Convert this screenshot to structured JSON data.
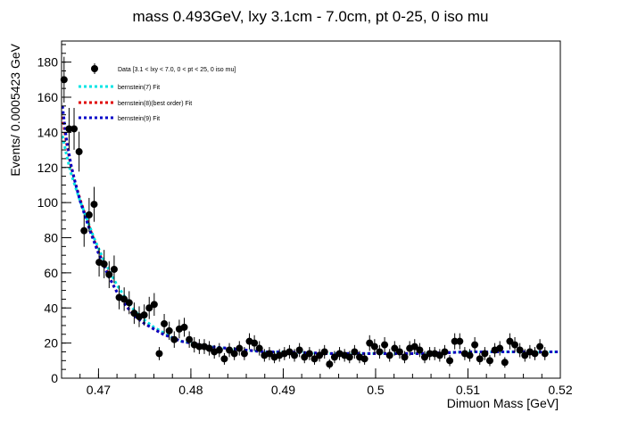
{
  "chart_data": {
    "type": "scatter",
    "title": "mass 0.493GeV, lxy 3.1cm - 7.0cm, pt 0-25, 0 iso mu",
    "xlabel": "Dimuon Mass [GeV]",
    "ylabel": "Events/ 0.0005423 GeV",
    "xlim": [
      0.466,
      0.52
    ],
    "ylim": [
      0,
      192
    ],
    "x_ticks": [
      0.47,
      0.48,
      0.49,
      0.5,
      0.51,
      0.52
    ],
    "x_tick_labels": [
      "0.47",
      "0.48",
      "0.49",
      "0.5",
      "0.51",
      "0.52"
    ],
    "y_ticks": [
      0,
      20,
      40,
      60,
      80,
      100,
      120,
      140,
      160,
      180
    ],
    "y_tick_labels": [
      "0",
      "20",
      "40",
      "60",
      "80",
      "100",
      "120",
      "140",
      "160",
      "180"
    ],
    "grid": false,
    "legend_position": "top-left",
    "legend": [
      {
        "label": "Data [3.1 < lxy < 7.0, 0 < pt < 25, 0 iso mu]",
        "color": "#000000",
        "style": "marker"
      },
      {
        "label": "bernstein(7) Fit",
        "color": "#00e5e5",
        "style": "dotted"
      },
      {
        "label": "bernstein(8)(best order) Fit",
        "color": "#e00000",
        "style": "dotted"
      },
      {
        "label": "bernstein(9) Fit",
        "color": "#0000c8",
        "style": "dotted"
      }
    ],
    "data_series": {
      "name": "Data [3.1 < lxy < 7.0, 0 < pt < 25, 0 iso mu]",
      "x_start": 0.46627,
      "bin_width": 0.0005423,
      "y": [
        170,
        142,
        142,
        129,
        84,
        93,
        99,
        66,
        65,
        59,
        62,
        46,
        45,
        43,
        37,
        35,
        36,
        40,
        42,
        14,
        31,
        27,
        22,
        28,
        29,
        22,
        19,
        18,
        18,
        17,
        15,
        16,
        11,
        16,
        14,
        17,
        14,
        21,
        20,
        17,
        13,
        14,
        12,
        13,
        14,
        15,
        13,
        16,
        12,
        14,
        11,
        13,
        15,
        8,
        12,
        14,
        13,
        12,
        15,
        12,
        11,
        20,
        18,
        15,
        19,
        13,
        17,
        15,
        12,
        17,
        18,
        16,
        12,
        14,
        14,
        13,
        15,
        10,
        21,
        21,
        14,
        13,
        19,
        11,
        14,
        10,
        16,
        17,
        9,
        21,
        19,
        16,
        13,
        15,
        14,
        18,
        14
      ]
    },
    "fits": [
      {
        "name": "bernstein(7) Fit",
        "color": "#00e5e5",
        "x": [
          0.4661,
          0.4665,
          0.467,
          0.4675,
          0.468,
          0.4685,
          0.469,
          0.4695,
          0.47,
          0.4705,
          0.471,
          0.4715,
          0.472,
          0.4725,
          0.473,
          0.4735,
          0.474,
          0.4745,
          0.475,
          0.476,
          0.477,
          0.478,
          0.479,
          0.48,
          0.482,
          0.484,
          0.486,
          0.488,
          0.49,
          0.495,
          0.5,
          0.505,
          0.51,
          0.515,
          0.52
        ],
        "y": [
          138,
          128,
          117,
          109,
          101,
          94,
          87,
          80,
          74,
          68,
          63,
          58,
          53,
          49,
          45,
          41,
          38,
          35,
          33,
          29,
          26,
          23,
          21,
          20,
          18,
          17,
          16,
          15,
          15,
          14,
          14,
          14,
          15,
          15,
          15
        ]
      },
      {
        "name": "bernstein(8)(best order) Fit",
        "color": "#e00000",
        "x": [
          0.4661,
          0.4665,
          0.467,
          0.4675,
          0.468,
          0.4685,
          0.469,
          0.4695,
          0.47,
          0.4705,
          0.471,
          0.4715,
          0.472,
          0.4725,
          0.473,
          0.4735,
          0.474,
          0.4745,
          0.475,
          0.476,
          0.477,
          0.478,
          0.479,
          0.48,
          0.482,
          0.484,
          0.486,
          0.488,
          0.49,
          0.495,
          0.5,
          0.505,
          0.51,
          0.515,
          0.52
        ],
        "y": [
          149,
          135,
          121,
          111,
          102,
          94,
          86,
          79,
          72,
          66,
          60,
          54,
          49,
          45,
          41,
          38,
          35,
          33,
          31,
          28,
          25,
          23,
          21,
          20,
          18,
          17,
          16,
          15,
          15,
          14,
          14,
          14,
          15,
          15,
          15
        ]
      },
      {
        "name": "bernstein(9) Fit",
        "color": "#0000c8",
        "x": [
          0.4661,
          0.4665,
          0.467,
          0.4675,
          0.468,
          0.4685,
          0.469,
          0.4695,
          0.47,
          0.4705,
          0.471,
          0.4715,
          0.472,
          0.4725,
          0.473,
          0.4735,
          0.474,
          0.4745,
          0.475,
          0.476,
          0.477,
          0.478,
          0.479,
          0.48,
          0.482,
          0.484,
          0.486,
          0.488,
          0.49,
          0.495,
          0.5,
          0.505,
          0.51,
          0.515,
          0.52
        ],
        "y": [
          155,
          137,
          122,
          111,
          101,
          93,
          85,
          78,
          71,
          65,
          59,
          54,
          49,
          45,
          41,
          38,
          35,
          33,
          31,
          28,
          25,
          23,
          21,
          20,
          18,
          17,
          16,
          15,
          15,
          14,
          14,
          14,
          15,
          15,
          15
        ]
      }
    ]
  }
}
